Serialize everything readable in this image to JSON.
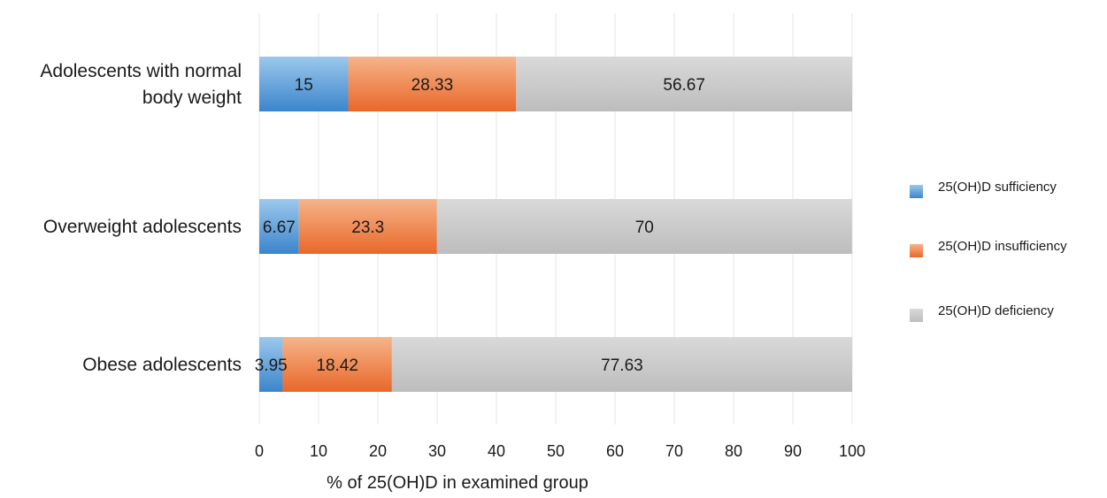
{
  "chart_data": {
    "type": "bar",
    "orientation": "horizontal",
    "stacked": true,
    "categories": [
      [
        "Adolescents with normal",
        "body weight"
      ],
      [
        "Overweight adolescents"
      ],
      [
        "Obese adolescents"
      ]
    ],
    "series": [
      {
        "name": "25(OH)D sufficiency",
        "values": [
          15,
          6.67,
          3.95
        ],
        "labels": [
          "15",
          "6.67",
          "3.95"
        ]
      },
      {
        "name": "25(OH)D insufficiency",
        "values": [
          28.33,
          23.3,
          18.42
        ],
        "labels": [
          "28.33",
          "23.3",
          "18.42"
        ]
      },
      {
        "name": "25(OH)D deficiency",
        "values": [
          56.67,
          70,
          77.63
        ],
        "labels": [
          "56.67",
          "70",
          "77.63"
        ]
      }
    ],
    "xlabel": "% of 25(OH)D in examined group",
    "xlim": [
      0,
      100
    ],
    "xticks": [
      0,
      10,
      20,
      30,
      40,
      50,
      60,
      70,
      80,
      90,
      100
    ],
    "grid": true,
    "legend_position": "right",
    "colors": {
      "sufficiency_light": "#9cc8ec",
      "sufficiency_dark": "#3b85cc",
      "insufficiency_light": "#f6b48a",
      "insufficiency_dark": "#e9672a",
      "deficiency_light": "#d9d9d9",
      "deficiency_dark": "#bdbdbd",
      "grid": "#e6e6e6",
      "text": "#1a1a1a"
    }
  }
}
